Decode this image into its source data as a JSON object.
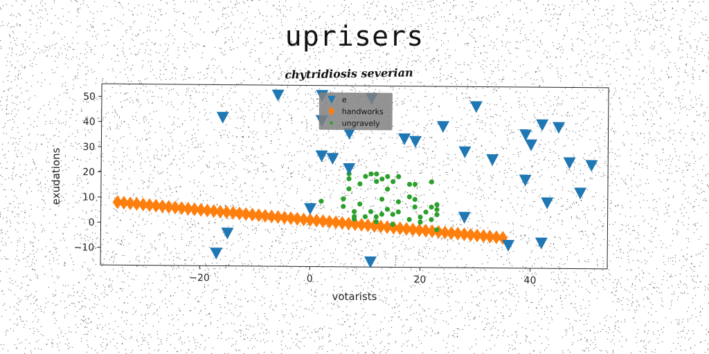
{
  "title": "uprisers",
  "subtitle": "chytridiosis severian",
  "colors": {
    "blue": "#1f77b4",
    "orange": "#ff7f0e",
    "green": "#2ca02c",
    "legend_bg": "#808080"
  },
  "chart_data": {
    "type": "scatter",
    "xlabel": "votarists",
    "ylabel": "exudations",
    "xlim": [
      -38,
      54
    ],
    "ylim": [
      -17,
      55
    ],
    "xticks": [
      -20,
      0,
      20,
      40
    ],
    "yticks": [
      -10,
      0,
      10,
      20,
      30,
      40,
      50
    ],
    "xtick_labels": [
      "−20",
      "0",
      "20",
      "40"
    ],
    "ytick_labels": [
      "−10",
      "0",
      "10",
      "20",
      "30",
      "40",
      "50"
    ],
    "grid": false,
    "legend_placement": "top-center",
    "series": [
      {
        "name": "e",
        "marker": "triangle-down",
        "color": "#1f77b4",
        "points": [
          [
            -6,
            51
          ],
          [
            -16,
            42
          ],
          [
            -17,
            -12
          ],
          [
            -15,
            -4
          ],
          [
            0,
            6
          ],
          [
            2,
            51
          ],
          [
            2,
            41
          ],
          [
            2,
            27
          ],
          [
            4,
            26
          ],
          [
            7,
            22
          ],
          [
            7,
            36
          ],
          [
            11,
            50
          ],
          [
            11,
            -15
          ],
          [
            17,
            34
          ],
          [
            19,
            33
          ],
          [
            24,
            39
          ],
          [
            28,
            3
          ],
          [
            30,
            47
          ],
          [
            28,
            29
          ],
          [
            33,
            26
          ],
          [
            36,
            -8
          ],
          [
            39,
            36
          ],
          [
            40,
            32
          ],
          [
            39,
            18
          ],
          [
            42,
            -7
          ],
          [
            42,
            40
          ],
          [
            43,
            9
          ],
          [
            45,
            39
          ],
          [
            47,
            25
          ],
          [
            49,
            13
          ],
          [
            51,
            24
          ]
        ]
      },
      {
        "name": "handworks",
        "marker": "diamond",
        "color": "#ff7f0e",
        "x_start": -35,
        "x_end": 35,
        "n": 61,
        "y_start": 8,
        "y_end": -5
      },
      {
        "name": "ungravely",
        "marker": "circle",
        "color": "#2ca02c",
        "points": [
          [
            2,
            9
          ],
          [
            6,
            7
          ],
          [
            6,
            10
          ],
          [
            7,
            14
          ],
          [
            7,
            18
          ],
          [
            7,
            20
          ],
          [
            8,
            5
          ],
          [
            8,
            3
          ],
          [
            8,
            2
          ],
          [
            9,
            8
          ],
          [
            9,
            16
          ],
          [
            10,
            3
          ],
          [
            10,
            19
          ],
          [
            11,
            20
          ],
          [
            11,
            5
          ],
          [
            12,
            20
          ],
          [
            12,
            17
          ],
          [
            12,
            3
          ],
          [
            12,
            1
          ],
          [
            13,
            10
          ],
          [
            13,
            4
          ],
          [
            13,
            18
          ],
          [
            14,
            14
          ],
          [
            14,
            6
          ],
          [
            14,
            19
          ],
          [
            15,
            17
          ],
          [
            15,
            4
          ],
          [
            15,
            0
          ],
          [
            16,
            5
          ],
          [
            16,
            9
          ],
          [
            16,
            19
          ],
          [
            18,
            16
          ],
          [
            18,
            11
          ],
          [
            18,
            2
          ],
          [
            19,
            7
          ],
          [
            19,
            10
          ],
          [
            19,
            16
          ],
          [
            20,
            1
          ],
          [
            20,
            3
          ],
          [
            21,
            5
          ],
          [
            22,
            17
          ],
          [
            22,
            7
          ],
          [
            22,
            2
          ],
          [
            23,
            4
          ],
          [
            23,
            6
          ],
          [
            23,
            8
          ],
          [
            23,
            -2
          ]
        ]
      }
    ]
  }
}
